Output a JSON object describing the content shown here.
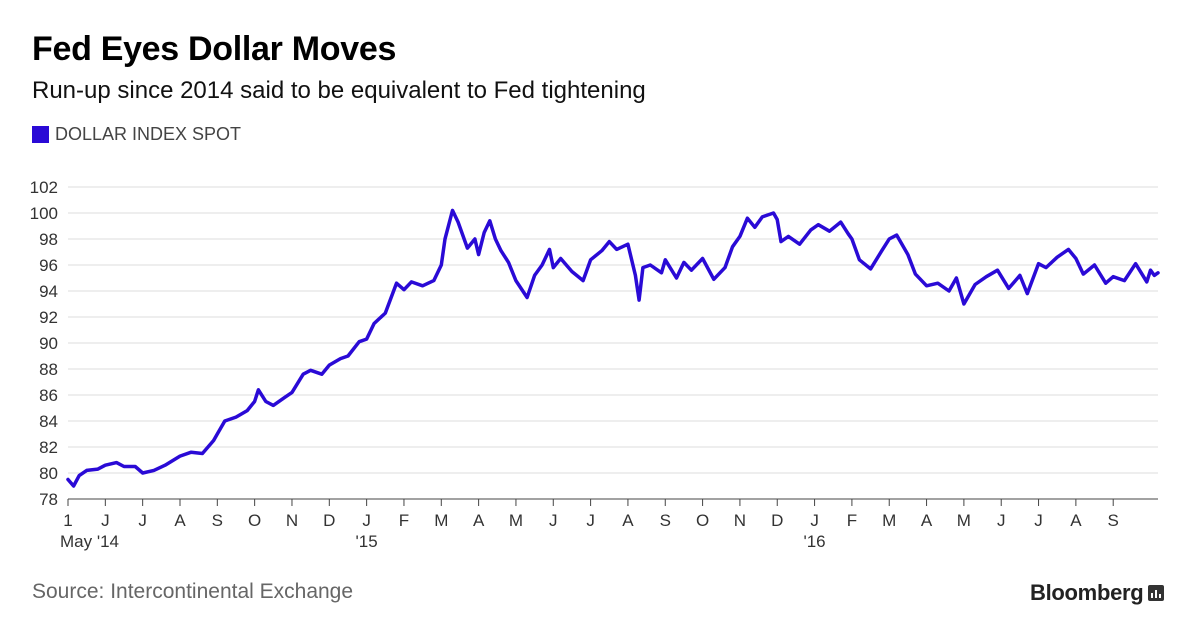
{
  "title": "Fed Eyes Dollar Moves",
  "subtitle": "Run-up since 2014 said to be equivalent to Fed tightening",
  "legend": {
    "label": "DOLLAR INDEX SPOT",
    "color": "#2a0ad6"
  },
  "source": "Source: Intercontinental Exchange",
  "brand": "Bloomberg",
  "chart_data": {
    "type": "line",
    "title": "Fed Eyes Dollar Moves",
    "xlabel": "",
    "ylabel": "",
    "ylim": [
      78,
      102
    ],
    "yticks": [
      78,
      80,
      82,
      84,
      86,
      88,
      90,
      92,
      94,
      96,
      98,
      100,
      102
    ],
    "grid": true,
    "xdomain": [
      0,
      29.2
    ],
    "xticks": [
      {
        "x": 0,
        "label": "1",
        "sub": "May '14"
      },
      {
        "x": 1,
        "label": "J"
      },
      {
        "x": 2,
        "label": "J"
      },
      {
        "x": 3,
        "label": "A"
      },
      {
        "x": 4,
        "label": "S"
      },
      {
        "x": 5,
        "label": "O"
      },
      {
        "x": 6,
        "label": "N"
      },
      {
        "x": 7,
        "label": "D"
      },
      {
        "x": 8,
        "label": "J",
        "sub": "'15"
      },
      {
        "x": 9,
        "label": "F"
      },
      {
        "x": 10,
        "label": "M"
      },
      {
        "x": 11,
        "label": "A"
      },
      {
        "x": 12,
        "label": "M"
      },
      {
        "x": 13,
        "label": "J"
      },
      {
        "x": 14,
        "label": "J"
      },
      {
        "x": 15,
        "label": "A"
      },
      {
        "x": 16,
        "label": "S"
      },
      {
        "x": 17,
        "label": "O"
      },
      {
        "x": 18,
        "label": "N"
      },
      {
        "x": 19,
        "label": "D"
      },
      {
        "x": 20,
        "label": "J",
        "sub": "'16"
      },
      {
        "x": 21,
        "label": "F"
      },
      {
        "x": 22,
        "label": "M"
      },
      {
        "x": 23,
        "label": "A"
      },
      {
        "x": 24,
        "label": "M"
      },
      {
        "x": 25,
        "label": "J"
      },
      {
        "x": 26,
        "label": "J"
      },
      {
        "x": 27,
        "label": "A"
      },
      {
        "x": 28,
        "label": "S"
      }
    ],
    "series": [
      {
        "name": "DOLLAR INDEX SPOT",
        "color": "#2a0ad6",
        "x": [
          0,
          0.15,
          0.3,
          0.5,
          0.8,
          1.0,
          1.3,
          1.5,
          1.8,
          2.0,
          2.3,
          2.6,
          3.0,
          3.3,
          3.6,
          3.9,
          4.0,
          4.2,
          4.5,
          4.8,
          5.0,
          5.1,
          5.3,
          5.5,
          5.8,
          6.0,
          6.3,
          6.5,
          6.8,
          7.0,
          7.3,
          7.5,
          7.8,
          8.0,
          8.2,
          8.5,
          8.8,
          9.0,
          9.2,
          9.5,
          9.8,
          10.0,
          10.1,
          10.3,
          10.45,
          10.7,
          10.9,
          11.0,
          11.15,
          11.3,
          11.45,
          11.6,
          11.8,
          12.0,
          12.3,
          12.5,
          12.7,
          12.9,
          13.0,
          13.2,
          13.5,
          13.8,
          14.0,
          14.3,
          14.5,
          14.7,
          15.0,
          15.2,
          15.3,
          15.4,
          15.6,
          15.9,
          16.0,
          16.3,
          16.5,
          16.7,
          17.0,
          17.3,
          17.6,
          17.8,
          18.0,
          18.2,
          18.4,
          18.6,
          18.9,
          19.0,
          19.1,
          19.3,
          19.6,
          19.9,
          20.1,
          20.4,
          20.7,
          20.9,
          21.0,
          21.2,
          21.5,
          21.8,
          22.0,
          22.2,
          22.5,
          22.7,
          23.0,
          23.3,
          23.6,
          23.8,
          24.0,
          24.3,
          24.6,
          24.9,
          25.2,
          25.5,
          25.7,
          26.0,
          26.2,
          26.5,
          26.8,
          27.0,
          27.2,
          27.5,
          27.8,
          28.0,
          28.3,
          28.6,
          28.9,
          29.0,
          29.1,
          29.2
        ],
        "values": [
          79.5,
          79.0,
          79.8,
          80.2,
          80.3,
          80.6,
          80.8,
          80.5,
          80.5,
          80.0,
          80.2,
          80.6,
          81.3,
          81.6,
          81.5,
          82.5,
          83.0,
          84.0,
          84.3,
          84.8,
          85.5,
          86.4,
          85.5,
          85.2,
          85.8,
          86.2,
          87.6,
          87.9,
          87.6,
          88.3,
          88.8,
          89.0,
          90.1,
          90.3,
          91.5,
          92.3,
          94.6,
          94.1,
          94.7,
          94.4,
          94.8,
          96.0,
          98.0,
          100.2,
          99.3,
          97.3,
          98.0,
          96.8,
          98.5,
          99.4,
          98.0,
          97.1,
          96.2,
          94.8,
          93.5,
          95.2,
          96.0,
          97.2,
          95.8,
          96.5,
          95.5,
          94.8,
          96.4,
          97.1,
          97.8,
          97.2,
          97.6,
          95.2,
          93.3,
          95.8,
          96.0,
          95.4,
          96.4,
          95.0,
          96.2,
          95.6,
          96.5,
          94.9,
          95.8,
          97.4,
          98.2,
          99.6,
          98.9,
          99.7,
          100.0,
          99.5,
          97.8,
          98.2,
          97.6,
          98.7,
          99.1,
          98.6,
          99.3,
          98.4,
          98.0,
          96.4,
          95.7,
          97.1,
          98.0,
          98.3,
          96.8,
          95.3,
          94.4,
          94.6,
          94.0,
          95.0,
          93.0,
          94.5,
          95.1,
          95.6,
          94.2,
          95.2,
          93.8,
          96.1,
          95.8,
          96.6,
          97.2,
          96.5,
          95.3,
          96.0,
          94.6,
          95.1,
          94.8,
          96.1,
          94.7,
          95.6,
          95.2,
          95.4
        ]
      }
    ]
  }
}
